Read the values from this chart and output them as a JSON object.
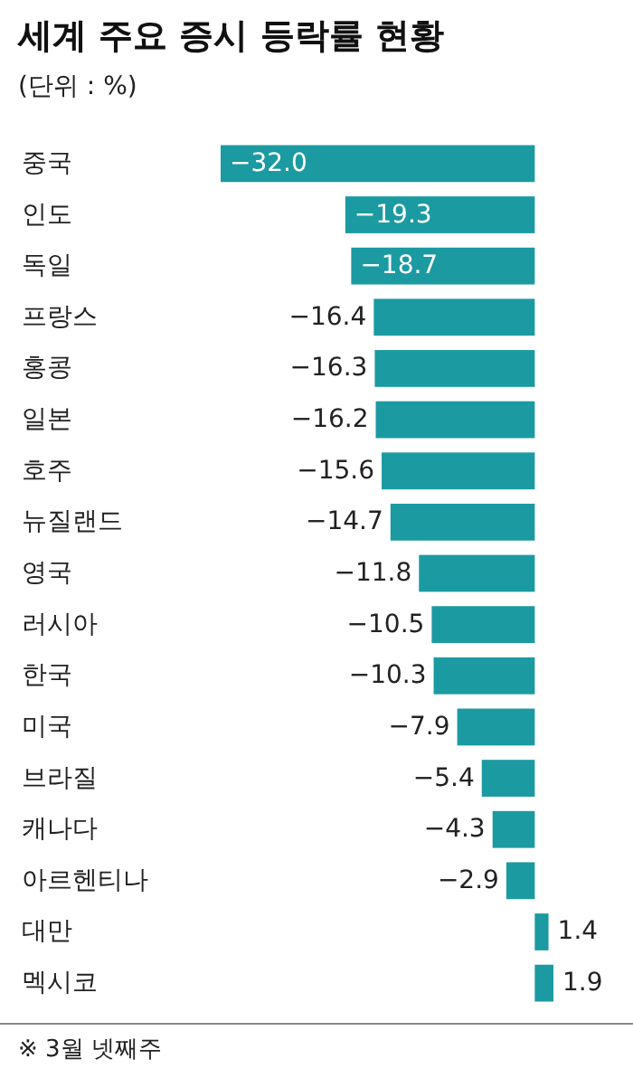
{
  "chart_data": {
    "type": "bar",
    "orientation": "horizontal",
    "title": "세계 주요 증시 등락률 현황",
    "subtitle": "(단위 : %)",
    "categories": [
      "중국",
      "인도",
      "독일",
      "프랑스",
      "홍콩",
      "일본",
      "호주",
      "뉴질랜드",
      "영국",
      "러시아",
      "한국",
      "미국",
      "브라질",
      "캐나다",
      "아르헨티나",
      "대만",
      "멕시코"
    ],
    "values": [
      -32.0,
      -19.3,
      -18.7,
      -16.4,
      -16.3,
      -16.2,
      -15.6,
      -14.7,
      -11.8,
      -10.5,
      -10.3,
      -7.9,
      -5.4,
      -4.3,
      -2.9,
      1.4,
      1.9
    ],
    "value_labels": [
      "−32.0",
      "−19.3",
      "−18.7",
      "−16.4",
      "−16.3",
      "−16.2",
      "−15.6",
      "−14.7",
      "−11.8",
      "−10.5",
      "−10.3",
      "−7.9",
      "−5.4",
      "−4.3",
      "−2.9",
      "1.4",
      "1.9"
    ],
    "color": "#1b9aa1",
    "annotations": [
      "※ 3월 넷째주"
    ]
  }
}
